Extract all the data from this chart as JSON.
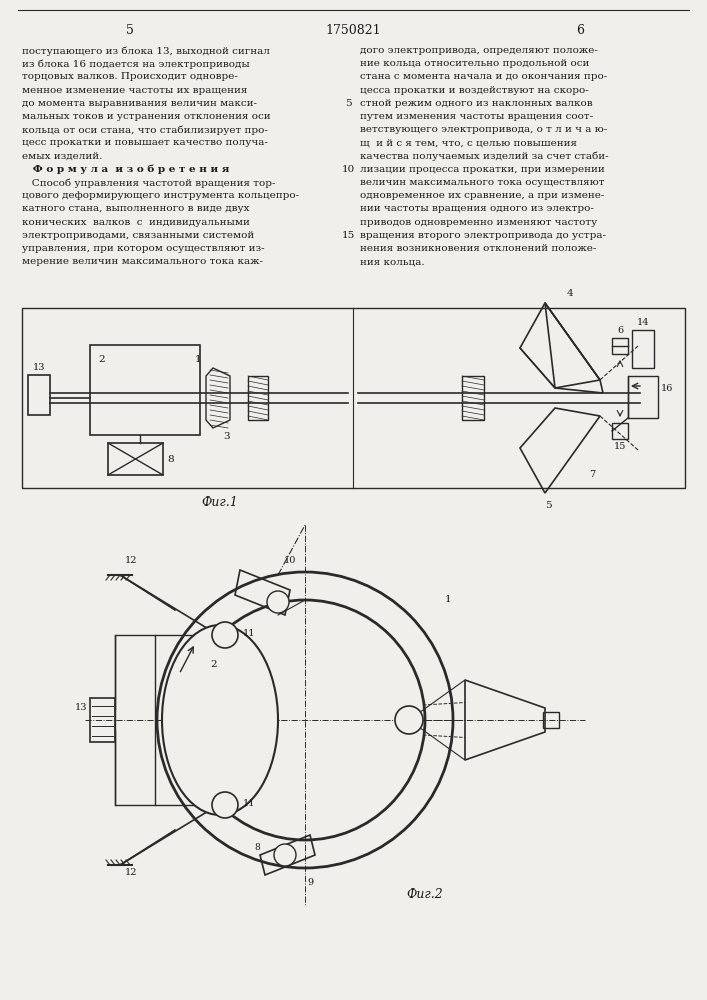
{
  "page_number_left": "5",
  "page_number_center": "1750821",
  "page_number_right": "6",
  "text_left": [
    "поступающего из блока 13, выходной сигнал",
    "из блока 16 подается на электроприводы",
    "торцовых валков. Происходит одновре-",
    "менное изменение частоты их вращения",
    "до момента выравнивания величин макси-",
    "мальных токов и устранения отклонения оси",
    "кольца от оси стана, что стабилизирует про-",
    "цесс прокатки и повышает качество получа-",
    "емых изделий.",
    "   Ф о р м у л а  и з о б р е т е н и я",
    "   Способ управления частотой вращения тор-",
    "цового деформирующего инструмента кольцепро-",
    "катного стана, выполненного в виде двух",
    "конических  валков  с  индивидуальными",
    "электроприводами, связанными системой",
    "управления, при котором осуществляют из-",
    "мерение величин максимального тока каж-"
  ],
  "text_right": [
    "дого электропривода, определяют положе-",
    "ние кольца относительно продольной оси",
    "стана с момента начала и до окончания про-",
    "цесса прокатки и воздействуют на скоро-",
    "стной режим одного из наклонных валков",
    "путем изменения частоты вращения соот-",
    "ветствующего электропривода, о т л и ч а ю-",
    "щ  и й с я тем, что, с целью повышения",
    "качества получаемых изделий за счет стаби-",
    "лизации процесса прокатки, при измерении",
    "величин максимального тока осуществляют",
    "одновременное их сравнение, а при измене-",
    "нии частоты вращения одного из электро-",
    "приводов одновременно изменяют частоту",
    "вращения второго электропривода до устра-",
    "нения возникновения отклонений положе-",
    "ния кольца."
  ],
  "fig1_label": "Фиг.1",
  "fig2_label": "Фиг.2",
  "bg_color": "#f0efeb",
  "line_color": "#2a2a2a",
  "text_color": "#1a1a1a"
}
